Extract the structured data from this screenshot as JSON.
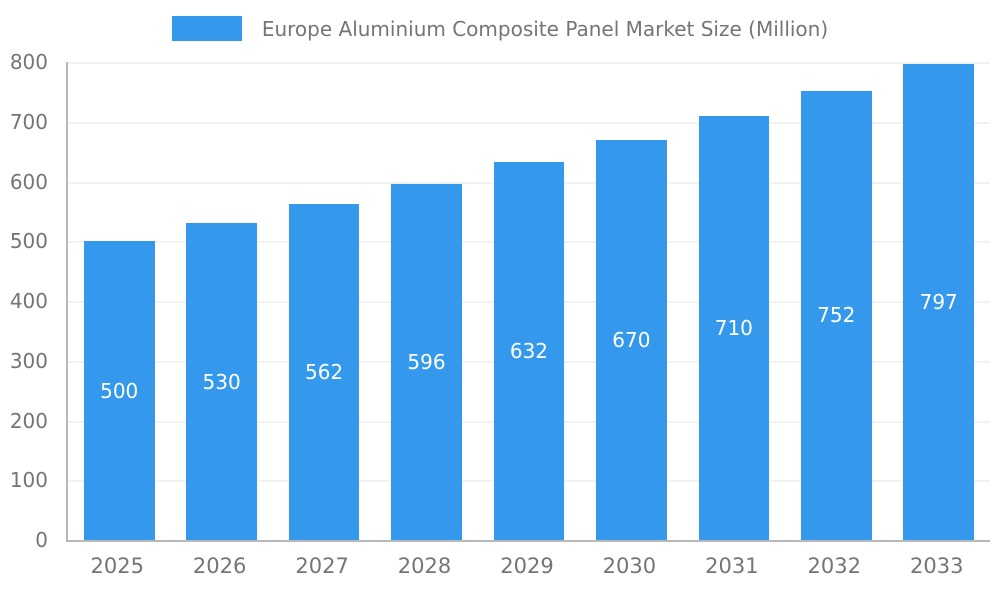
{
  "legend": {
    "swatch": "bar-series-swatch"
  },
  "colors": {
    "bar": "#3499EC",
    "grid": "#e4e4e4",
    "axis": "#b8b8b8",
    "tick_text": "#757575",
    "title_text": "#757575",
    "value_label_text": "#ffffff",
    "background": "#ffffff"
  },
  "chart_data": {
    "type": "bar",
    "title": "Europe Aluminium Composite Panel Market Size (Million)",
    "categories": [
      "2025",
      "2026",
      "2027",
      "2028",
      "2029",
      "2030",
      "2031",
      "2032",
      "2033"
    ],
    "values": [
      500,
      530,
      562,
      596,
      632,
      670,
      710,
      752,
      797
    ],
    "series": [
      {
        "name": "Europe Aluminium Composite Panel Market Size (Million)",
        "values": [
          500,
          530,
          562,
          596,
          632,
          670,
          710,
          752,
          797
        ]
      }
    ],
    "xlabel": "",
    "ylabel": "",
    "ylim": [
      0,
      800
    ],
    "ytick_step": 100,
    "yticks": [
      0,
      100,
      200,
      300,
      400,
      500,
      600,
      700,
      800
    ],
    "grid": true,
    "legend_position": "top-center",
    "value_labels": "inside-center-white"
  }
}
